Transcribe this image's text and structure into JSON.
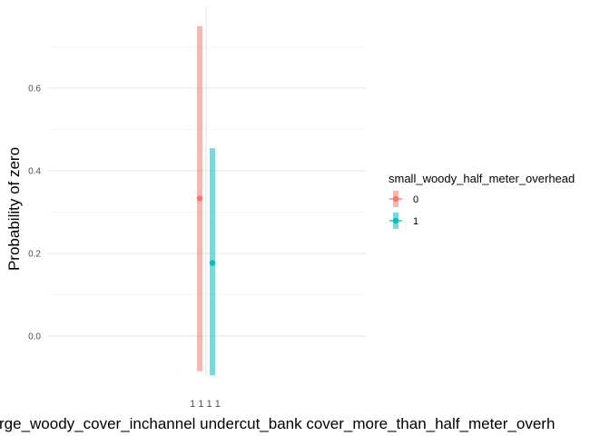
{
  "chart_data": {
    "type": "pointrange",
    "title": "",
    "xlabel": "rge_woody_cover_inchannel undercut_bank cover_more_than_half_meter_overh",
    "ylabel": "Probability of zero",
    "x_tick_label": "1 1 1 1",
    "ylim": [
      -0.1,
      0.75
    ],
    "yticks": [
      0.0,
      0.2,
      0.4,
      0.6
    ],
    "ytick_labels": [
      "0.0",
      "0.2",
      "0.4",
      "0.6"
    ],
    "grid": true,
    "legend": {
      "title": "small_woody_half_meter_overhead",
      "placement": "right"
    },
    "series": [
      {
        "name": "0",
        "color": "#F8766D",
        "estimate": 0.333,
        "lower": -0.085,
        "upper": 0.75
      },
      {
        "name": "1",
        "color": "#00BFC4",
        "estimate": 0.177,
        "lower": -0.095,
        "upper": 0.455
      }
    ]
  }
}
